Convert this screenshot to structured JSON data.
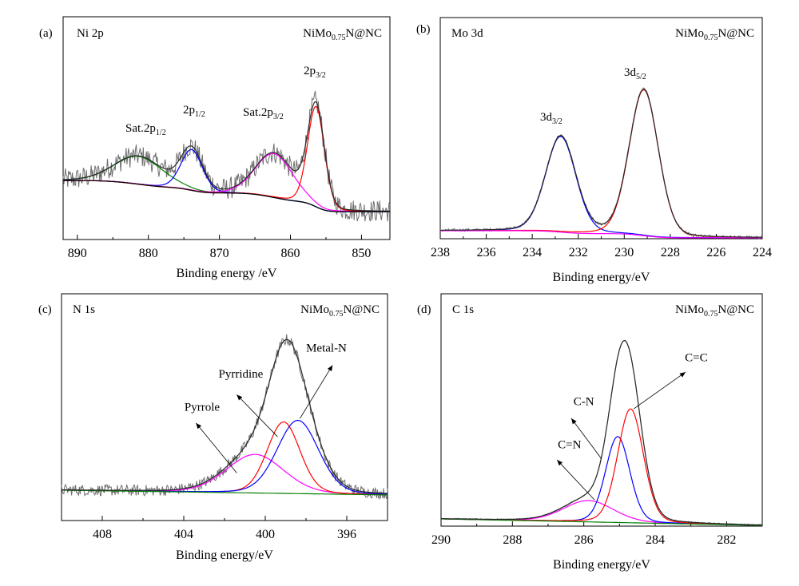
{
  "colors": {
    "raw": "#6e6e6e",
    "envelope": "#2a2a2a",
    "background": "#000000",
    "red": "#ff0000",
    "blue": "#0000ff",
    "green": "#008000",
    "magenta": "#ff00ff"
  },
  "chart_data": [
    {
      "type": "line",
      "panel_label": "(a)",
      "title": "Ni 2p",
      "sample": {
        "base": "NiMo",
        "sub": "0.75",
        "rest": "N@NC"
      },
      "xlabel": "Binding energy /eV",
      "ylabel": "",
      "xlim": [
        892,
        846
      ],
      "ylim": [
        0,
        100
      ],
      "xticks": [
        890,
        880,
        870,
        860,
        850
      ],
      "minor_step": 5,
      "noise": 5,
      "background": {
        "type": "shirley",
        "left": 26.5,
        "right": 12.5
      },
      "peaks": [
        {
          "name": "Sat.2p1/2",
          "center": 881.4,
          "height": 12.5,
          "fwhm": 8.0,
          "color": "green",
          "label": {
            "base": "Sat.2p",
            "sub": "1/2"
          }
        },
        {
          "name": "2p1/2",
          "center": 873.9,
          "height": 18.3,
          "fwhm": 3.6,
          "color": "blue",
          "label": {
            "base": "2p",
            "sub": "1/2"
          }
        },
        {
          "name": "Sat.2p3/2",
          "center": 862.3,
          "height": 19.7,
          "fwhm": 6.2,
          "color": "magenta",
          "label": {
            "base": "Sat.2p",
            "sub": "3/2"
          }
        },
        {
          "name": "2p3/2",
          "center": 856.4,
          "height": 45.0,
          "fwhm": 2.8,
          "color": "red",
          "label": {
            "base": "2p",
            "sub": "3/2"
          }
        }
      ],
      "annotations": []
    },
    {
      "type": "line",
      "panel_label": "(b)",
      "title": "Mo 3d",
      "sample": {
        "base": "NiMo",
        "sub": "0.75",
        "rest": "N@NC"
      },
      "xlabel": "Binding energy/eV",
      "ylabel": "",
      "xlim": [
        238,
        224
      ],
      "ylim": [
        0,
        100
      ],
      "xticks": [
        238,
        236,
        234,
        232,
        230,
        228,
        226,
        224
      ],
      "minor_step": 1,
      "noise": 0.6,
      "background": {
        "type": "shirley",
        "left": 3.6,
        "right": 0.4
      },
      "peaks": [
        {
          "name": "3d3/2",
          "center": 232.76,
          "height": 43.3,
          "fwhm": 1.55,
          "color": "blue",
          "label": {
            "base": "3d",
            "sub": "3/2"
          }
        },
        {
          "name": "3d5/2",
          "center": 229.15,
          "height": 66.0,
          "fwhm": 1.5,
          "color": "red",
          "label": {
            "base": "3d",
            "sub": "5/2"
          }
        }
      ],
      "background_color": "magenta",
      "annotations": []
    },
    {
      "type": "line",
      "panel_label": "(c)",
      "title": "N 1s",
      "sample": {
        "base": "NiMo",
        "sub": "0.75",
        "rest": "N@NC"
      },
      "xlabel": "Binding energy/eV",
      "ylabel": "",
      "xlim": [
        410,
        394
      ],
      "ylim": [
        0,
        100
      ],
      "xticks": [
        408,
        404,
        400,
        396
      ],
      "minor_step": 2,
      "noise": 2.5,
      "background": {
        "type": "linear",
        "left": 13.4,
        "right": 11.3
      },
      "background_color": "green",
      "peaks": [
        {
          "name": "Pyrrole",
          "center": 400.5,
          "height": 17.0,
          "fwhm": 3.3,
          "color": "magenta"
        },
        {
          "name": "Pyrridine",
          "center": 399.1,
          "height": 31.5,
          "fwhm": 1.9,
          "color": "red"
        },
        {
          "name": "Metal-N",
          "center": 398.4,
          "height": 32.3,
          "fwhm": 2.4,
          "color": "blue"
        }
      ],
      "annotations": [
        {
          "text": "Metal-N",
          "from": [
            398.3,
            45.0
          ],
          "to": [
            396.7,
            68.5
          ],
          "text_at": [
            397.0,
            74.5
          ]
        },
        {
          "text": "Pyrridine",
          "from": [
            399.4,
            37.0
          ],
          "to": [
            401.4,
            55.5
          ],
          "text_at": [
            401.2,
            63.0
          ]
        },
        {
          "text": "Pyrrole",
          "from": [
            401.4,
            21.0
          ],
          "to": [
            403.4,
            43.0
          ],
          "text_at": [
            403.1,
            48.5
          ]
        }
      ]
    },
    {
      "type": "line",
      "panel_label": "(d)",
      "title": "C 1s",
      "sample": {
        "base": "NiMo",
        "sub": "0.75",
        "rest": "N@NC"
      },
      "xlabel": "Binding energy/eV",
      "ylabel": "",
      "xlim": [
        290,
        281
      ],
      "ylim": [
        0,
        100
      ],
      "xticks": [
        290,
        288,
        286,
        284,
        282
      ],
      "minor_step": 1,
      "noise": 0.25,
      "background": {
        "type": "linear",
        "left": 3.1,
        "right": 0.3
      },
      "background_color": "green",
      "peaks": [
        {
          "name": "C=N",
          "center": 285.87,
          "height": 9.2,
          "fwhm": 1.65,
          "color": "magenta"
        },
        {
          "name": "C-N",
          "center": 285.05,
          "height": 37.0,
          "fwhm": 0.8,
          "color": "blue"
        },
        {
          "name": "C=C",
          "center": 284.69,
          "height": 49.0,
          "fwhm": 0.85,
          "color": "red"
        }
      ],
      "annotations": [
        {
          "text": "C=C",
          "from": [
            284.6,
            50.5
          ],
          "to": [
            283.15,
            66.3
          ],
          "text_at": [
            282.85,
            71.0
          ]
        },
        {
          "text": "C-N",
          "from": [
            285.5,
            28.9
          ],
          "to": [
            286.35,
            46.4
          ],
          "text_at": [
            286.0,
            52.0
          ]
        },
        {
          "text": "C=N",
          "from": [
            285.7,
            11.3
          ],
          "to": [
            286.75,
            28.5
          ],
          "text_at": [
            286.4,
            33.5
          ]
        }
      ]
    }
  ]
}
